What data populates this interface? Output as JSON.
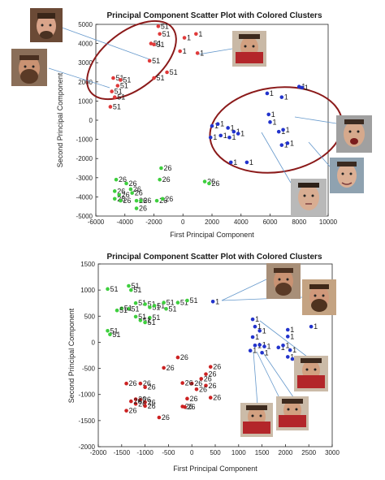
{
  "chart_data": [
    {
      "type": "scatter",
      "title": "Principal Component Scatter Plot with Colored Clusters",
      "xlabel": "First Principal Component",
      "ylabel": "Second Principal Component",
      "xlim": [
        -6000,
        10000
      ],
      "ylim": [
        -5000,
        5000
      ],
      "xticks": [
        "-6000",
        "-4000",
        "-2000",
        "0",
        "2000",
        "4000",
        "6000",
        "8000",
        "10000"
      ],
      "yticks": [
        "-5000",
        "-4000",
        "-3000",
        "-2000",
        "-1000",
        "0",
        "1000",
        "2000",
        "3000",
        "4000",
        "5000"
      ],
      "grid": false,
      "series": [
        {
          "label": "51",
          "color": "#e03a3a",
          "points": [
            [
              -1700,
              4900
            ],
            [
              -1600,
              4500
            ],
            [
              -2200,
              4000
            ],
            [
              -2000,
              3950
            ],
            [
              -2300,
              3100
            ],
            [
              -4800,
              2200
            ],
            [
              -4300,
              2100
            ],
            [
              -4500,
              1800
            ],
            [
              -4900,
              1500
            ],
            [
              -4700,
              1200
            ],
            [
              -5000,
              700
            ],
            [
              -1100,
              2500
            ],
            [
              -2000,
              2200
            ]
          ]
        },
        {
          "label": "1",
          "color": "#e03a3a",
          "points": [
            [
              100,
              4300
            ],
            [
              900,
              4500
            ],
            [
              1000,
              3500
            ],
            [
              -200,
              3600
            ]
          ]
        },
        {
          "label": "1",
          "color": "#2233cc",
          "points": [
            [
              5800,
              1400
            ],
            [
              6800,
              1200
            ],
            [
              8000,
              1750
            ],
            [
              8200,
              1700
            ],
            [
              5900,
              300
            ],
            [
              6000,
              -100
            ],
            [
              6600,
              -600
            ],
            [
              6900,
              -500
            ],
            [
              6800,
              -1300
            ],
            [
              7200,
              -1200
            ],
            [
              2000,
              -300
            ],
            [
              2400,
              -200
            ],
            [
              1900,
              -900
            ],
            [
              2600,
              -800
            ],
            [
              3100,
              -400
            ],
            [
              3500,
              -600
            ],
            [
              3200,
              -900
            ],
            [
              3800,
              -700
            ],
            [
              3300,
              -2200
            ],
            [
              4400,
              -2200
            ]
          ]
        },
        {
          "label": "26",
          "color": "#3ecf3e",
          "points": [
            [
              -4600,
              -3100
            ],
            [
              -4700,
              -3700
            ],
            [
              -4400,
              -3900
            ],
            [
              -4700,
              -4100
            ],
            [
              -4300,
              -4200
            ],
            [
              -3500,
              -3800
            ],
            [
              -3200,
              -4200
            ],
            [
              -2900,
              -4200
            ],
            [
              -3200,
              -4600
            ],
            [
              -1500,
              -2500
            ],
            [
              -1600,
              -3100
            ],
            [
              -1800,
              -4200
            ],
            [
              -1400,
              -4100
            ],
            [
              1500,
              -3200
            ],
            [
              1800,
              -3300
            ],
            [
              -3900,
              -3300
            ],
            [
              -3600,
              -3600
            ]
          ]
        }
      ],
      "annotations": [
        "Red ellipse encircling the upper-left cluster",
        "Red ellipse encircling the right blue cluster",
        "Face thumbnails linked to points by thin lines"
      ]
    },
    {
      "type": "scatter",
      "title": "Principal Component Scatter Plot with Colored Clusters",
      "xlabel": "First Principal Component",
      "ylabel": "Second Principal Component",
      "xlim": [
        -2000,
        3000
      ],
      "ylim": [
        -2000,
        1500
      ],
      "xticks": [
        "-2000",
        "-1500",
        "-1000",
        "-500",
        "0",
        "500",
        "1000",
        "1500",
        "2000",
        "2500",
        "3000"
      ],
      "yticks": [
        "-2000",
        "-1500",
        "-1000",
        "-500",
        "0",
        "500",
        "1000",
        "1500"
      ],
      "grid": false,
      "series": [
        {
          "label": "51",
          "color": "#3ecf3e",
          "points": [
            [
              -1800,
              1020
            ],
            [
              -1350,
              1080
            ],
            [
              -1300,
              1000
            ],
            [
              -1200,
              750
            ],
            [
              -1350,
              640
            ],
            [
              -1500,
              650
            ],
            [
              -1600,
              610
            ],
            [
              -1000,
              730
            ],
            [
              -900,
              670
            ],
            [
              -800,
              700
            ],
            [
              -600,
              760
            ],
            [
              -550,
              640
            ],
            [
              -900,
              470
            ],
            [
              -1100,
              420
            ],
            [
              -1200,
              490
            ],
            [
              -1000,
              380
            ],
            [
              -300,
              760
            ],
            [
              -100,
              800
            ],
            [
              -1800,
              220
            ],
            [
              -1750,
              150
            ]
          ]
        },
        {
          "label": "1",
          "color": "#2233cc",
          "points": [
            [
              450,
              780
            ],
            [
              1300,
              440
            ],
            [
              1350,
              300
            ],
            [
              1450,
              220
            ],
            [
              1300,
              100
            ],
            [
              2050,
              240
            ],
            [
              2050,
              110
            ],
            [
              2550,
              300
            ],
            [
              1350,
              -60
            ],
            [
              1450,
              -50
            ],
            [
              1550,
              -80
            ],
            [
              1250,
              -160
            ],
            [
              1500,
              -200
            ],
            [
              1850,
              -100
            ],
            [
              1950,
              -60
            ],
            [
              2100,
              -150
            ],
            [
              2050,
              -280
            ],
            [
              2150,
              -320
            ]
          ]
        },
        {
          "label": "26",
          "color": "#cc2222",
          "points": [
            [
              -300,
              -290
            ],
            [
              -600,
              -490
            ],
            [
              -1100,
              -790
            ],
            [
              -1400,
              -790
            ],
            [
              -1000,
              -860
            ],
            [
              -1100,
              -1100
            ],
            [
              -1200,
              -1090
            ],
            [
              -1000,
              -1150
            ],
            [
              -1200,
              -1180
            ],
            [
              -1300,
              -1130
            ],
            [
              -1000,
              -1220
            ],
            [
              -700,
              -1440
            ],
            [
              -1400,
              -1310
            ],
            [
              -100,
              -1080
            ],
            [
              -200,
              -1230
            ],
            [
              -150,
              -1240
            ],
            [
              400,
              -1060
            ],
            [
              300,
              -830
            ],
            [
              0,
              -790
            ],
            [
              100,
              -900
            ],
            [
              200,
              -700
            ],
            [
              400,
              -470
            ],
            [
              300,
              -610
            ],
            [
              -200,
              -780
            ]
          ]
        }
      ],
      "annotations": [
        "Face thumbnails linked to points by thin lines"
      ]
    }
  ]
}
